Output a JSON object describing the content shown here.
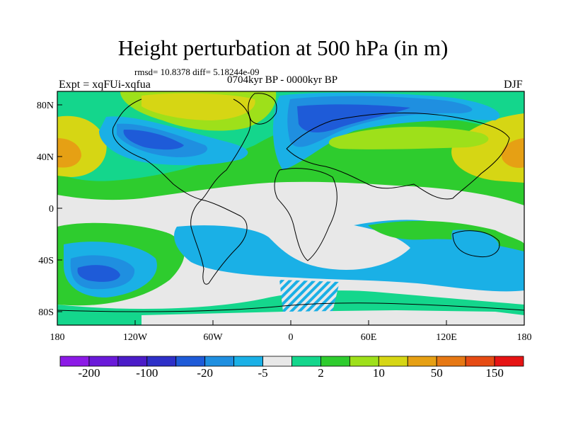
{
  "title": "Height perturbation at 500 hPa (in m)",
  "rmsd_text": "rmsd= 10.8378 diff= 5.18244e-09",
  "experiment_label": "Expt = xqFUi-xqfua",
  "period_label": "0704kyr BP - 0000kyr BP",
  "season_label": "DJF",
  "map": {
    "projection": "cylindrical equidistant",
    "lon_range": [
      -180,
      180
    ],
    "lat_range": [
      -90,
      90
    ],
    "x_ticks": [
      "180",
      "120W",
      "60W",
      "0",
      "60E",
      "120E",
      "180"
    ],
    "y_ticks": [
      "80N",
      "40N",
      "0",
      "40S",
      "80S"
    ],
    "background_color": "#e8e8e8"
  },
  "colorbar": {
    "colors": [
      "#8c1ae6",
      "#6a1ad9",
      "#4b1cc8",
      "#2e30c8",
      "#1e5bd8",
      "#1f8fe0",
      "#1ab0e6",
      "#e8e8e8",
      "#14d68c",
      "#2ecc2e",
      "#9ee01a",
      "#d6d614",
      "#e6a014",
      "#e67814",
      "#e64b14",
      "#e61414"
    ],
    "labels": [
      "-200",
      "-100",
      "-20",
      "-5",
      "2",
      "10",
      "50",
      "150"
    ]
  }
}
